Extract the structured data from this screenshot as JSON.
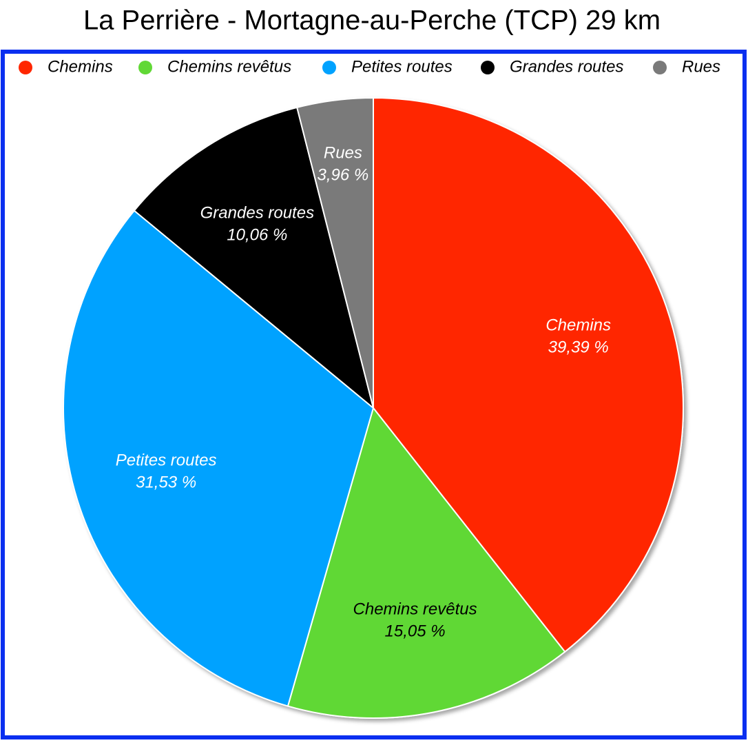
{
  "chart_data": {
    "type": "pie",
    "title": "La Perrière - Mortagne-au-Perche (TCP) 29 km",
    "categories": [
      "Chemins",
      "Chemins revêtus",
      "Petites routes",
      "Grandes routes",
      "Rues"
    ],
    "values": [
      39.39,
      15.05,
      31.53,
      10.06,
      3.96
    ],
    "value_labels": [
      "39,39 %",
      "15,05 %",
      "31,53 %",
      "10,06 %",
      "3,96 %"
    ],
    "colors": [
      "#ff2600",
      "#61d836",
      "#00a2ff",
      "#000000",
      "#7a7a7a"
    ],
    "legend": "top"
  }
}
